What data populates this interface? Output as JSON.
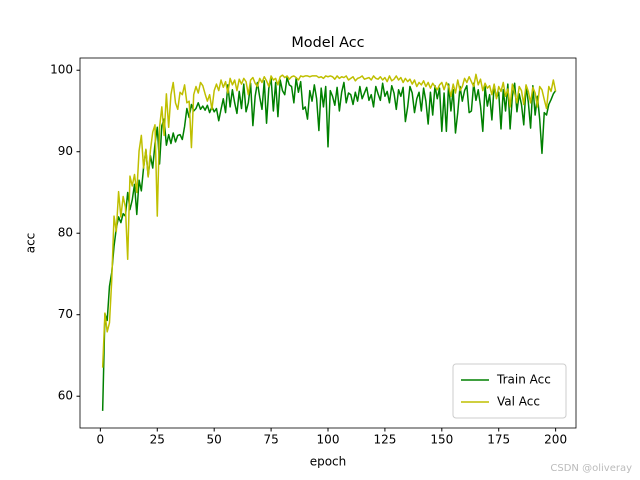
{
  "chart_data": {
    "type": "line",
    "title": "Model Acc",
    "xlabel": "epoch",
    "ylabel": "acc",
    "x": [
      1,
      2,
      3,
      4,
      5,
      6,
      7,
      8,
      9,
      10,
      11,
      12,
      13,
      14,
      15,
      16,
      17,
      18,
      19,
      20,
      21,
      22,
      23,
      24,
      25,
      26,
      27,
      28,
      29,
      30,
      31,
      32,
      33,
      34,
      35,
      36,
      37,
      38,
      39,
      40,
      41,
      42,
      43,
      44,
      45,
      46,
      47,
      48,
      49,
      50,
      51,
      52,
      53,
      54,
      55,
      56,
      57,
      58,
      59,
      60,
      61,
      62,
      63,
      64,
      65,
      66,
      67,
      68,
      69,
      70,
      71,
      72,
      73,
      74,
      75,
      76,
      77,
      78,
      79,
      80,
      81,
      82,
      83,
      84,
      85,
      86,
      87,
      88,
      89,
      90,
      91,
      92,
      93,
      94,
      95,
      96,
      97,
      98,
      99,
      100,
      101,
      102,
      103,
      104,
      105,
      106,
      107,
      108,
      109,
      110,
      111,
      112,
      113,
      114,
      115,
      116,
      117,
      118,
      119,
      120,
      121,
      122,
      123,
      124,
      125,
      126,
      127,
      128,
      129,
      130,
      131,
      132,
      133,
      134,
      135,
      136,
      137,
      138,
      139,
      140,
      141,
      142,
      143,
      144,
      145,
      146,
      147,
      148,
      149,
      150,
      151,
      152,
      153,
      154,
      155,
      156,
      157,
      158,
      159,
      160,
      161,
      162,
      163,
      164,
      165,
      166,
      167,
      168,
      169,
      170,
      171,
      172,
      173,
      174,
      175,
      176,
      177,
      178,
      179,
      180,
      181,
      182,
      183,
      184,
      185,
      186,
      187,
      188,
      189,
      190,
      191,
      192,
      193,
      194,
      195,
      196,
      197,
      198,
      199,
      200
    ],
    "series": [
      {
        "name": "Train Acc",
        "color": "#008000",
        "values": [
          58.2,
          70.1,
          69.3,
          73.5,
          75.2,
          78.4,
          80.6,
          82.0,
          81.3,
          82.4,
          82.1,
          85.0,
          82.9,
          84.1,
          86.0,
          82.3,
          86.5,
          85.2,
          88.1,
          90.2,
          87.0,
          89.5,
          88.0,
          91.0,
          93.0,
          88.5,
          93.2,
          94.0,
          90.8,
          92.1,
          91.0,
          92.3,
          91.2,
          92.0,
          92.1,
          91.5,
          93.1,
          95.3,
          94.2,
          95.8,
          95.0,
          95.3,
          96.0,
          95.2,
          95.6,
          95.1,
          95.7,
          94.8,
          95.5,
          94.9,
          95.3,
          93.8,
          95.2,
          96.5,
          94.8,
          98.2,
          95.5,
          97.6,
          96.0,
          94.7,
          97.4,
          95.3,
          98.3,
          94.9,
          96.0,
          98.4,
          93.2,
          96.8,
          98.5,
          96.7,
          95.2,
          98.7,
          93.5,
          97.8,
          99.0,
          95.0,
          98.5,
          94.3,
          98.8,
          97.5,
          97.0,
          99.1,
          98.2,
          98.0,
          96.0,
          99.0,
          97.3,
          98.6,
          95.2,
          95.5,
          94.0,
          97.5,
          96.2,
          98.2,
          96.5,
          92.6,
          97.8,
          95.5,
          98.0,
          90.6,
          97.5,
          96.8,
          95.7,
          97.9,
          95.0,
          97.3,
          98.5,
          96.0,
          97.2,
          97.0,
          95.8,
          97.3,
          96.2,
          98.0,
          96.5,
          97.2,
          97.9,
          96.3,
          97.0,
          95.5,
          98.0,
          97.1,
          96.3,
          98.4,
          96.8,
          97.4,
          96.0,
          98.1,
          97.2,
          95.2,
          97.6,
          96.8,
          97.9,
          93.7,
          95.5,
          98.0,
          97.2,
          94.8,
          96.5,
          97.3,
          95.0,
          97.8,
          96.2,
          93.4,
          97.3,
          94.5,
          98.1,
          96.5,
          97.8,
          92.5,
          97.2,
          92.5,
          98.3,
          95.0,
          97.6,
          92.3,
          94.8,
          98.0,
          96.2,
          97.5,
          98.1,
          94.8,
          95.0,
          98.4,
          96.3,
          97.6,
          95.6,
          92.5,
          98.0,
          95.6,
          97.0,
          93.9,
          98.2,
          96.6,
          97.3,
          92.8,
          97.6,
          95.0,
          98.3,
          92.8,
          96.8,
          98.4,
          94.9,
          97.1,
          95.8,
          93.3,
          98.0,
          96.1,
          92.9,
          98.1,
          94.5,
          96.8,
          94.0,
          89.8,
          94.8,
          94.5,
          95.8,
          96.4,
          97.1,
          97.5
        ]
      },
      {
        "name": "Val Acc",
        "color": "#bfbf00",
        "values": [
          63.5,
          70.2,
          67.9,
          69.0,
          74.3,
          82.1,
          80.2,
          85.1,
          82.0,
          84.5,
          83.2,
          76.8,
          87.0,
          85.8,
          87.2,
          85.0,
          90.1,
          92.0,
          88.0,
          90.3,
          86.9,
          90.2,
          92.4,
          93.3,
          82.1,
          93.0,
          95.5,
          92.0,
          97.1,
          93.0,
          97.0,
          98.5,
          96.0,
          95.2,
          97.3,
          97.0,
          98.2,
          96.0,
          96.2,
          90.5,
          97.0,
          98.0,
          97.2,
          98.5,
          98.1,
          97.1,
          96.2,
          97.0,
          95.2,
          97.5,
          98.3,
          97.5,
          98.8,
          97.9,
          98.6,
          97.2,
          99.0,
          98.2,
          98.8,
          97.5,
          98.9,
          98.3,
          99.0,
          98.6,
          97.0,
          98.8,
          99.1,
          98.4,
          98.0,
          99.0,
          98.5,
          99.2,
          98.7,
          98.0,
          99.3,
          98.8,
          99.0,
          98.2,
          99.2,
          99.4,
          99.1,
          99.3,
          98.9,
          99.2,
          99.3,
          99.1,
          98.8,
          99.3,
          99.2,
          99.3,
          99.3,
          99.2,
          99.3,
          99.3,
          99.3,
          99.1,
          99.2,
          99.0,
          99.3,
          99.2,
          99.3,
          99.2,
          98.9,
          99.3,
          99.0,
          99.2,
          99.1,
          99.3,
          98.8,
          99.0,
          99.2,
          98.7,
          99.0,
          99.1,
          99.3,
          98.9,
          99.0,
          99.1,
          98.8,
          99.3,
          99.0,
          98.9,
          99.2,
          98.8,
          99.1,
          98.6,
          99.3,
          98.7,
          98.9,
          99.3,
          98.8,
          99.1,
          98.5,
          99.0,
          98.6,
          98.9,
          98.3,
          98.8,
          98.0,
          98.5,
          98.2,
          98.7,
          98.0,
          98.5,
          97.8,
          98.4,
          98.0,
          97.6,
          98.2,
          98.5,
          97.6,
          98.5,
          98.0,
          96.8,
          98.3,
          97.2,
          98.8,
          97.5,
          98.0,
          99.0,
          98.5,
          99.2,
          98.6,
          98.0,
          99.5,
          98.2,
          98.9,
          97.5,
          98.4,
          97.8,
          98.1,
          97.0,
          98.3,
          96.5,
          98.0,
          97.4,
          98.5,
          96.8,
          97.7,
          95.5,
          98.3,
          97.2,
          96.0,
          98.0,
          97.5,
          95.8,
          98.2,
          97.4,
          96.0,
          97.9,
          97.2,
          95.5,
          98.0,
          97.6,
          96.4,
          95.3,
          98.0,
          97.4,
          98.8,
          97.4
        ]
      }
    ],
    "xlim": [
      -8.95,
      208.95
    ],
    "xticks": [
      0,
      25,
      50,
      75,
      100,
      125,
      150,
      175,
      200
    ],
    "ylim": [
      56.1,
      101.5
    ],
    "yticks": [
      60,
      70,
      80,
      90,
      100
    ],
    "legend": "lower right",
    "grid": false
  },
  "watermark": "CSDN @oliveray"
}
